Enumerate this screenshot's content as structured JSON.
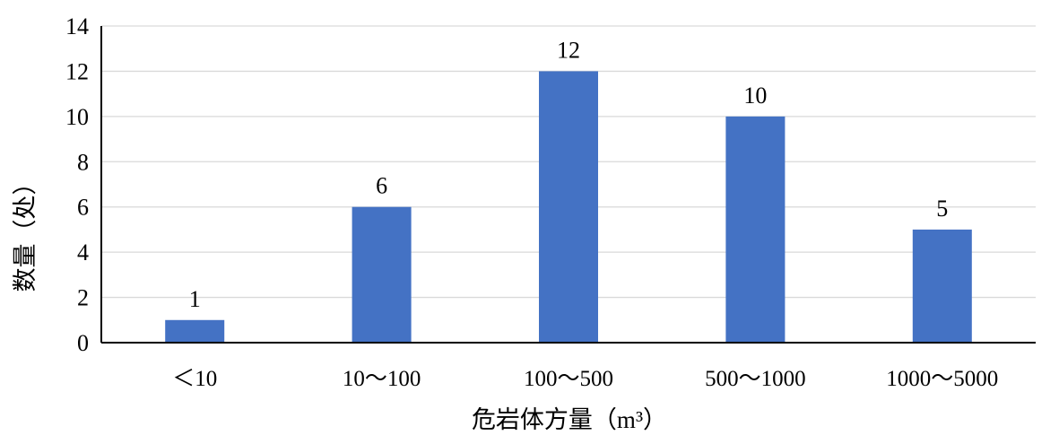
{
  "chart_data": {
    "type": "bar",
    "title": "",
    "categories": [
      "＜10",
      "10～100",
      "100～500",
      "500～1000",
      "1000～5000"
    ],
    "values": [
      1,
      6,
      12,
      10,
      5
    ],
    "data_labels": [
      "1",
      "6",
      "12",
      "10",
      "5"
    ],
    "xlabel": "危岩体方量（m³）",
    "ylabel": "数量（处）",
    "ylim": [
      0,
      14
    ],
    "yticks": [
      0,
      2,
      4,
      6,
      8,
      10,
      12,
      14
    ],
    "ytick_labels": [
      "0",
      "2",
      "4",
      "6",
      "8",
      "10",
      "12",
      "14"
    ],
    "grid": true,
    "legend": "none",
    "bar_color": "#4472C4",
    "grid_color": "#D9D9D9",
    "axis_color": "#000000"
  }
}
